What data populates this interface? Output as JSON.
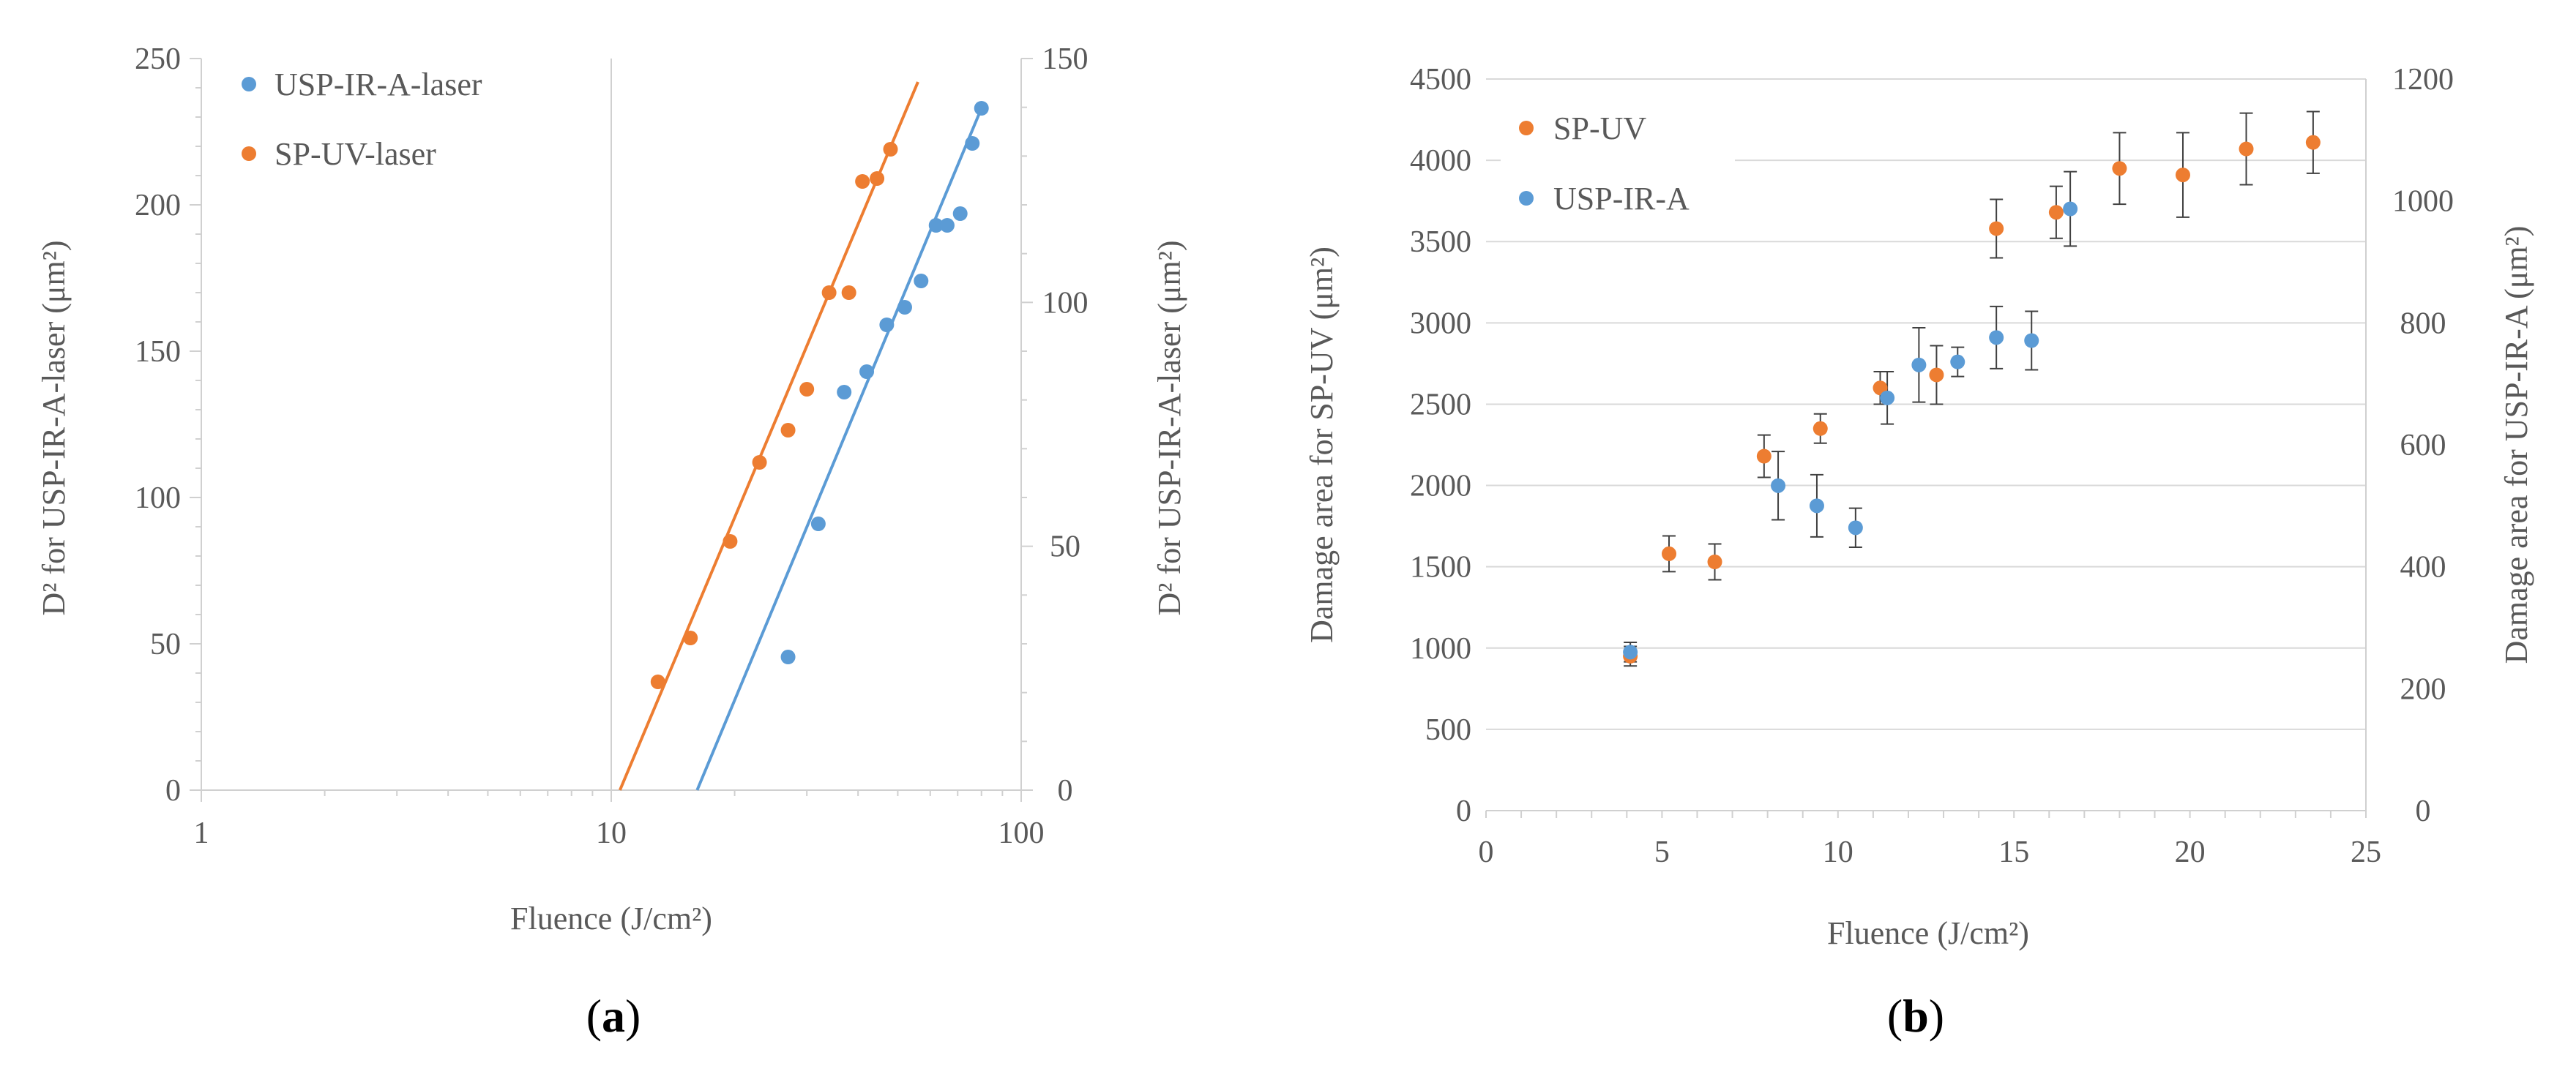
{
  "chart_data": [
    {
      "panel_label": "a",
      "type": "scatter",
      "xlabel": "Fluence (J/cm²)",
      "ylabel_left": "D² for USP-IR-A-laser (μm²)",
      "ylabel_right": "D² for USP-IR-A-laser  (μm²)",
      "x_scale": "log",
      "xlim": [
        1,
        100
      ],
      "ylim_left": [
        0,
        250
      ],
      "ylim_right": [
        0,
        150
      ],
      "x_ticks": [
        1,
        10,
        100
      ],
      "x_tick_labels": [
        "1",
        "10",
        "100"
      ],
      "y_left_ticks": [
        0,
        50,
        100,
        150,
        200,
        250
      ],
      "y_left_tick_labels": [
        "0",
        "50",
        "100",
        "150",
        "200",
        "250"
      ],
      "y_right_ticks": [
        0,
        50,
        100,
        150
      ],
      "y_right_tick_labels": [
        "0",
        "50",
        "100",
        "150"
      ],
      "vertical_reference_x": 10,
      "legend": [
        "USP-IR-A-laser",
        "SP-UV-laser"
      ],
      "legend_position": "top-left",
      "series": [
        {
          "name": "USP-IR-A-laser",
          "color": "#5B9BD5",
          "axis": "right",
          "points": [
            [
              27,
              27.3
            ],
            [
              32,
              54.6
            ],
            [
              37,
              81.6
            ],
            [
              42,
              85.8
            ],
            [
              47,
              95.4
            ],
            [
              52,
              99
            ],
            [
              57,
              104.4
            ],
            [
              62,
              115.8
            ],
            [
              66,
              115.8
            ],
            [
              71,
              118.2
            ],
            [
              76,
              132.6
            ],
            [
              80,
              139.8
            ]
          ],
          "fit_line": [
            [
              16.2,
              0
            ],
            [
              80,
              139.8
            ]
          ]
        },
        {
          "name": "SP-UV-laser",
          "color": "#ED7D31",
          "axis": "left",
          "points": [
            [
              13,
              37
            ],
            [
              15.6,
              52
            ],
            [
              19.5,
              85
            ],
            [
              23,
              112
            ],
            [
              27,
              123
            ],
            [
              30,
              137
            ],
            [
              34,
              170
            ],
            [
              38,
              170
            ],
            [
              41,
              208
            ],
            [
              44.5,
              209
            ],
            [
              48,
              219
            ]
          ],
          "fit_line": [
            [
              10.5,
              0
            ],
            [
              56,
              242
            ]
          ]
        }
      ]
    },
    {
      "panel_label": "b",
      "type": "scatter",
      "xlabel": "Fluence (J/cm²)",
      "ylabel_left": "Damage area for SP-UV (μm²)",
      "ylabel_right": "Damage area for USP-IR-A (μm²)",
      "xlim": [
        0,
        25
      ],
      "ylim_left": [
        0,
        4500
      ],
      "ylim_right": [
        0,
        1200
      ],
      "x_ticks": [
        0,
        5,
        10,
        15,
        20,
        25
      ],
      "x_tick_labels": [
        "0",
        "5",
        "10",
        "15",
        "20",
        "25"
      ],
      "y_left_ticks": [
        0,
        500,
        1000,
        1500,
        2000,
        2500,
        3000,
        3500,
        4000,
        4500
      ],
      "y_left_tick_labels": [
        "0",
        "500",
        "1000",
        "1500",
        "2000",
        "2500",
        "3000",
        "3500",
        "4000",
        "4500"
      ],
      "y_right_ticks": [
        0,
        200,
        400,
        600,
        800,
        1000,
        1200
      ],
      "y_right_tick_labels": [
        "0",
        "200",
        "400",
        "600",
        "800",
        "1000",
        "1200"
      ],
      "grid": true,
      "legend": [
        "SP-UV",
        "USP-IR-A"
      ],
      "legend_position": "top-left",
      "series": [
        {
          "name": "SP-UV",
          "color": "#ED7D31",
          "axis": "left",
          "points": [
            {
              "x": 4.1,
              "y": 950,
              "err": 60
            },
            {
              "x": 5.2,
              "y": 1580,
              "err": 110
            },
            {
              "x": 6.5,
              "y": 1530,
              "err": 110
            },
            {
              "x": 7.9,
              "y": 2180,
              "err": 130
            },
            {
              "x": 9.5,
              "y": 2350,
              "err": 90
            },
            {
              "x": 11.2,
              "y": 2600,
              "err": 100
            },
            {
              "x": 12.8,
              "y": 2680,
              "err": 180
            },
            {
              "x": 14.5,
              "y": 3580,
              "err": 180
            },
            {
              "x": 16.2,
              "y": 3680,
              "err": 160
            },
            {
              "x": 18,
              "y": 3950,
              "err": 220
            },
            {
              "x": 19.8,
              "y": 3910,
              "err": 260
            },
            {
              "x": 21.6,
              "y": 4070,
              "err": 220
            },
            {
              "x": 23.5,
              "y": 4110,
              "err": 190
            }
          ]
        },
        {
          "name": "USP-IR-A",
          "color": "#5B9BD5",
          "axis": "right",
          "points": [
            {
              "x": 4.1,
              "y": 260,
              "err": 16
            },
            {
              "x": 8.3,
              "y": 533,
              "err": 56
            },
            {
              "x": 9.4,
              "y": 500,
              "err": 51
            },
            {
              "x": 10.5,
              "y": 464,
              "err": 32
            },
            {
              "x": 11.4,
              "y": 677,
              "err": 43
            },
            {
              "x": 12.3,
              "y": 731,
              "err": 61
            },
            {
              "x": 13.4,
              "y": 736,
              "err": 24
            },
            {
              "x": 14.5,
              "y": 776,
              "err": 51
            },
            {
              "x": 15.5,
              "y": 771,
              "err": 48
            },
            {
              "x": 16.6,
              "y": 987,
              "err": 61
            }
          ]
        }
      ]
    }
  ]
}
